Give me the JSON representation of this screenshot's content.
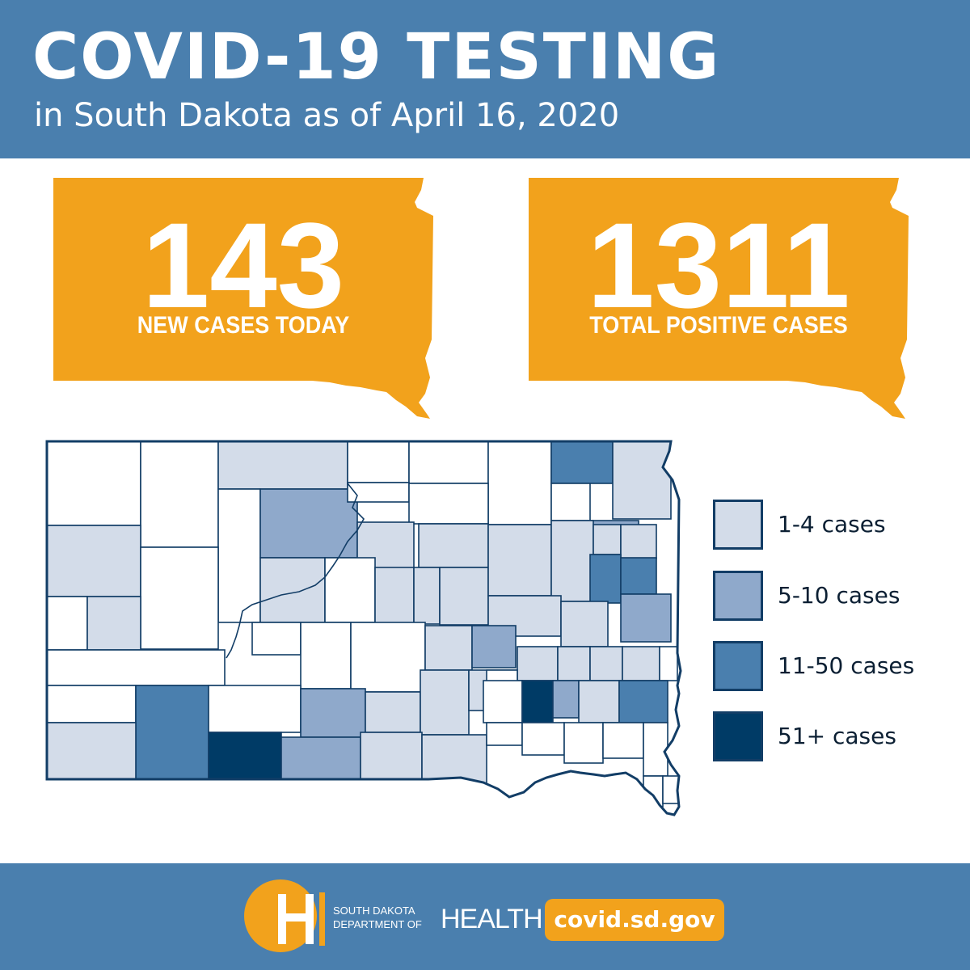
{
  "header": {
    "title": "COVID-19 TESTING",
    "subtitle": "in South Dakota as of April 16, 2020"
  },
  "stats": [
    {
      "value": "143",
      "label": "NEW CASES TODAY"
    },
    {
      "value": "1311",
      "label": "TOTAL POSITIVE CASES"
    }
  ],
  "colors": {
    "header_bg": "#4a7fae",
    "accent_orange": "#f2a21c",
    "border": "#123d66",
    "tier_0": "#ffffff",
    "tier_1": "#d3dce9",
    "tier_2": "#8fa9cb",
    "tier_3": "#4a7fae",
    "tier_4": "#003b66"
  },
  "map": {
    "legend": [
      {
        "label": "1-4 cases",
        "tier": 1
      },
      {
        "label": "5-10 cases",
        "tier": 2
      },
      {
        "label": "11-50 cases",
        "tier": 3
      },
      {
        "label": "51+ cases",
        "tier": 4
      }
    ],
    "county_tiers": [
      0,
      0,
      1,
      0,
      0,
      0,
      3,
      1,
      1,
      0,
      2,
      0,
      0,
      0,
      0,
      0,
      1,
      1,
      1,
      1,
      2,
      0,
      0,
      1,
      1,
      1,
      1,
      1,
      1,
      1,
      3,
      3,
      1,
      1,
      2,
      0,
      0,
      0,
      1,
      2,
      0,
      3,
      0,
      2,
      1,
      1,
      1,
      1,
      1,
      1,
      1,
      0,
      0,
      0,
      4,
      2,
      1,
      3,
      1,
      4,
      2,
      1,
      1
    ]
  },
  "footer": {
    "org_line1": "SOUTH DAKOTA",
    "org_line2": "DEPARTMENT OF",
    "org_big": "HEALTH",
    "website": "covid.sd.gov"
  }
}
